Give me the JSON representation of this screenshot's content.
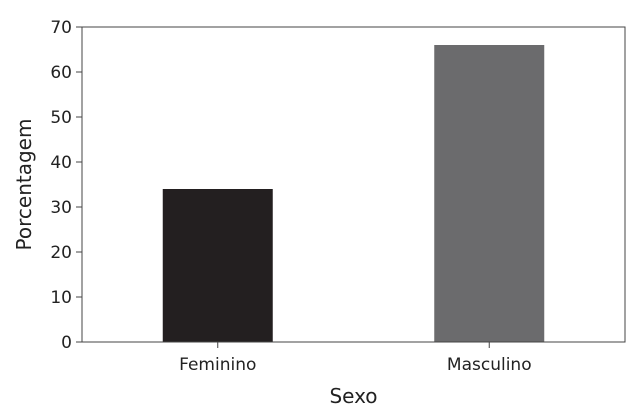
{
  "chart_data": {
    "type": "bar",
    "title": "",
    "xlabel": "Sexo",
    "ylabel": "Porcentagem",
    "categories": [
      "Feminino",
      "Masculino"
    ],
    "values": [
      34,
      66
    ],
    "ylim": [
      0,
      70
    ],
    "yticks": [
      0,
      10,
      20,
      30,
      40,
      50,
      60,
      70
    ],
    "grid": false,
    "legend": "none",
    "bar_colors": [
      "#231f20",
      "#6b6b6d"
    ],
    "axis_color": "#444444"
  }
}
